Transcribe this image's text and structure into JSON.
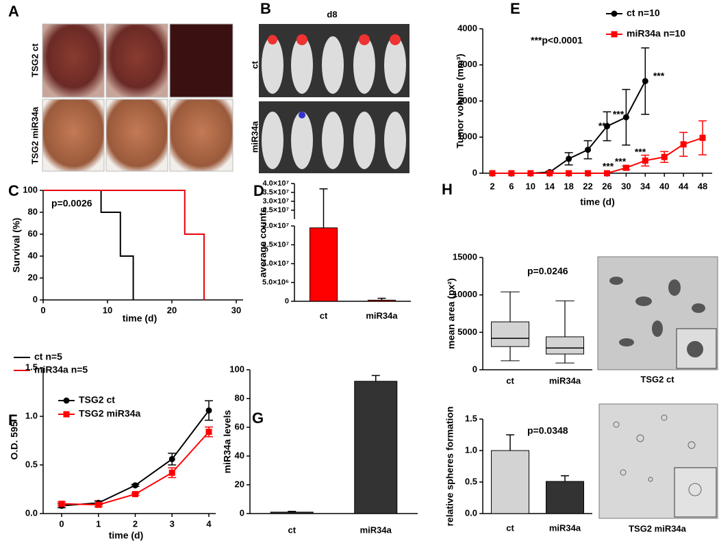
{
  "figure": {
    "panel_labels": [
      "A",
      "B",
      "C",
      "D",
      "E",
      "F",
      "G",
      "H"
    ],
    "photo_a_rows": [
      "TSG2 ct",
      "TSG2 miR34a"
    ],
    "photo_b_title": "d8",
    "photo_b_rows": [
      "ct",
      "miR34a"
    ],
    "photo_h_captions": [
      "TSG2 ct",
      "TSG2 miR34a"
    ]
  },
  "chart_data": [
    {
      "type": "line",
      "step": true,
      "ylabel": "Survival (%)",
      "xlabel": "time (d)",
      "annotations": [
        "p=0.0026"
      ],
      "xlim": [
        0,
        30
      ],
      "xticks": [
        0,
        10,
        20,
        30
      ],
      "ylim": [
        0,
        100
      ],
      "yticks": [
        0,
        20,
        40,
        60,
        80,
        100
      ],
      "legend": "lower left",
      "series": [
        {
          "name": "ct n=5",
          "color": "#000000",
          "x": [
            0,
            9,
            12,
            14
          ],
          "values": [
            100,
            80,
            40,
            0
          ]
        },
        {
          "name": "miR34a n=5",
          "color": "#e8000b",
          "x": [
            0,
            22,
            25
          ],
          "values": [
            100,
            60,
            0
          ]
        }
      ]
    },
    {
      "type": "bar",
      "ylabel": "average counts",
      "categories": [
        "ct",
        "miR34a"
      ],
      "values": [
        19500000,
        300000
      ],
      "errors": [
        17500000,
        500000
      ],
      "colors": [
        "#ff0000",
        "#ff0000"
      ],
      "ylim": [
        0,
        20000000
      ],
      "yticks": [
        0,
        {
          "value": 5000000,
          "label": "5.0×10⁶"
        },
        {
          "value": 10000000,
          "label": "1.0×10⁷"
        },
        {
          "value": 15000000,
          "label": "1.5×10⁷"
        },
        {
          "value": 20000000,
          "label": "2.0×10⁷"
        }
      ],
      "y_upper_lim": [
        20000000,
        40000000
      ],
      "y_upper_ticks": [
        {
          "value": 25000000,
          "label": "2.5×10⁷"
        },
        {
          "value": 30000000,
          "label": "3.0×10⁷"
        },
        {
          "value": 35000000,
          "label": "3.5×10⁷"
        },
        {
          "value": 40000000,
          "label": "4.0×10⁷"
        }
      ]
    },
    {
      "type": "line",
      "ylabel": "Tumor volume (mm³)",
      "xlabel": "time (d)",
      "legend": "upper right",
      "annotations": [
        "***p<0.0001",
        "***",
        "***",
        "***",
        "***",
        "***",
        "***"
      ],
      "categories": [
        "2",
        "6",
        "10",
        "14",
        "18",
        "22",
        "26",
        "30",
        "34",
        "40",
        "44",
        "48"
      ],
      "ylim": [
        0,
        4000
      ],
      "yticks": [
        0,
        1000,
        2000,
        3000,
        4000
      ],
      "series": [
        {
          "name": "ct n=10",
          "color": "#000000",
          "marker": "circle",
          "values": [
            0,
            0,
            0,
            30,
            400,
            650,
            1300,
            1550,
            2550,
            null,
            null,
            null
          ],
          "errors": [
            0,
            0,
            0,
            20,
            170,
            250,
            400,
            770,
            920,
            null,
            null,
            null
          ]
        },
        {
          "name": "miR34a n=10",
          "color": "#ff0000",
          "marker": "square",
          "values": [
            0,
            0,
            0,
            0,
            0,
            0,
            0,
            150,
            350,
            450,
            800,
            980
          ],
          "errors": [
            0,
            0,
            0,
            0,
            0,
            0,
            0,
            50,
            150,
            150,
            330,
            470
          ]
        }
      ]
    },
    {
      "type": "line",
      "ylabel": "O.D. 595",
      "xlabel": "time (d)",
      "legend": "upper left",
      "xlim": [
        0,
        4
      ],
      "xticks": [
        0,
        1,
        2,
        3,
        4
      ],
      "ylim": [
        0,
        1.5
      ],
      "yticks": [
        {
          "value": 0,
          "label": "0.0"
        },
        0.5,
        {
          "value": 1,
          "label": "1.0"
        },
        1.5
      ],
      "series": [
        {
          "name": "TSG2 ct",
          "color": "#000000",
          "marker": "circle",
          "x": [
            0,
            1,
            2,
            3,
            4
          ],
          "values": [
            0.08,
            0.11,
            0.29,
            0.56,
            1.06
          ],
          "errors": [
            0.02,
            0.02,
            0.01,
            0.06,
            0.1
          ]
        },
        {
          "name": "TSG2 miR34a",
          "color": "#ff0000",
          "marker": "square",
          "x": [
            0,
            1,
            2,
            3,
            4
          ],
          "values": [
            0.1,
            0.09,
            0.2,
            0.42,
            0.84
          ],
          "errors": [
            0.02,
            0.02,
            0.01,
            0.05,
            0.05
          ]
        }
      ]
    },
    {
      "type": "bar",
      "ylabel": "miR34a levels",
      "categories": [
        "ct",
        "miR34a"
      ],
      "values": [
        1,
        92
      ],
      "errors": [
        0.5,
        4
      ],
      "colors": [
        "#333333",
        "#333333"
      ],
      "ylim": [
        0,
        100
      ],
      "yticks": [
        0,
        20,
        40,
        60,
        80,
        100
      ]
    },
    {
      "type": "box",
      "ylabel": "mean area (px²)",
      "annotations": [
        "p=0.0246"
      ],
      "categories": [
        "ct",
        "miR34a"
      ],
      "color": "#d3d3d3",
      "boxes": [
        {
          "min": 1200,
          "q1": 3100,
          "median": 4200,
          "q3": 6400,
          "max": 10400
        },
        {
          "min": 900,
          "q1": 2100,
          "median": 2900,
          "q3": 4400,
          "max": 9200
        }
      ],
      "ylim": [
        0,
        15000
      ],
      "yticks": [
        0,
        5000,
        10000,
        15000
      ]
    },
    {
      "type": "bar",
      "ylabel": "relative spheres formation",
      "annotations": [
        "p=0.0348"
      ],
      "categories": [
        "ct",
        "miR34a"
      ],
      "values": [
        1.0,
        0.51
      ],
      "errors": [
        0.25,
        0.09
      ],
      "colors": [
        "#d3d3d3",
        "#333333"
      ],
      "ylim": [
        0,
        1.5
      ],
      "yticks": [
        {
          "value": 0,
          "label": "0.0"
        },
        0.5,
        {
          "value": 1,
          "label": "1.0"
        },
        1.5
      ]
    }
  ]
}
